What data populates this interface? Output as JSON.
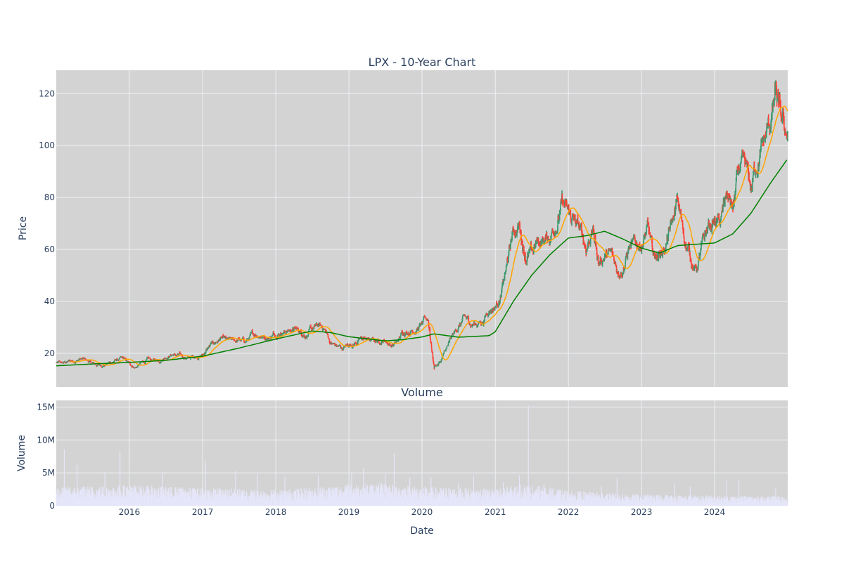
{
  "chart_data": [
    {
      "type": "candlestick",
      "title": "LPX - 10-Year Chart",
      "ylabel": "Price",
      "ylim": [
        7,
        129
      ],
      "yticks": [
        20,
        40,
        60,
        80,
        100,
        120
      ],
      "xlim": [
        "2015-01-01",
        "2024-12-31"
      ],
      "grid": true,
      "colors": {
        "increasing": "#3D9970",
        "decreasing": "#FF4136",
        "ma_short": "#FFA500",
        "ma_long": "#008000",
        "plot_bg": "#d3d3d3",
        "grid": "#eef0f4"
      },
      "price_path": [
        [
          "2015-01-02",
          16.3
        ],
        [
          "2015-02-01",
          15.9
        ],
        [
          "2015-03-01",
          16.6
        ],
        [
          "2015-04-01",
          17.2
        ],
        [
          "2015-05-01",
          17.9
        ],
        [
          "2015-06-01",
          17.1
        ],
        [
          "2015-07-01",
          15.9
        ],
        [
          "2015-08-01",
          15.2
        ],
        [
          "2015-09-01",
          15.8
        ],
        [
          "2015-10-01",
          16.6
        ],
        [
          "2015-11-01",
          17.4
        ],
        [
          "2015-12-01",
          17.6
        ],
        [
          "2016-01-01",
          15.6
        ],
        [
          "2016-02-01",
          14.6
        ],
        [
          "2016-03-01",
          16.2
        ],
        [
          "2016-04-01",
          17.3
        ],
        [
          "2016-05-01",
          17.0
        ],
        [
          "2016-06-01",
          17.6
        ],
        [
          "2016-07-01",
          19.2
        ],
        [
          "2016-08-01",
          19.9
        ],
        [
          "2016-09-01",
          19.1
        ],
        [
          "2016-10-01",
          18.3
        ],
        [
          "2016-11-01",
          18.2
        ],
        [
          "2016-12-01",
          19.0
        ],
        [
          "2017-01-01",
          19.5
        ],
        [
          "2017-02-01",
          22.4
        ],
        [
          "2017-03-01",
          23.8
        ],
        [
          "2017-04-01",
          25.6
        ],
        [
          "2017-05-01",
          24.3
        ],
        [
          "2017-06-01",
          24.1
        ],
        [
          "2017-07-01",
          25.0
        ],
        [
          "2017-08-01",
          24.2
        ],
        [
          "2017-09-01",
          26.2
        ],
        [
          "2017-10-01",
          27.6
        ],
        [
          "2017-11-01",
          27.0
        ],
        [
          "2017-12-01",
          26.5
        ],
        [
          "2018-01-01",
          28.1
        ],
        [
          "2018-02-01",
          29.2
        ],
        [
          "2018-03-01",
          29.0
        ],
        [
          "2018-04-01",
          29.4
        ],
        [
          "2018-05-01",
          28.4
        ],
        [
          "2018-06-01",
          27.8
        ],
        [
          "2018-07-01",
          28.9
        ],
        [
          "2018-08-01",
          30.1
        ],
        [
          "2018-09-01",
          29.4
        ],
        [
          "2018-10-01",
          24.3
        ],
        [
          "2018-11-01",
          22.6
        ],
        [
          "2018-12-01",
          21.8
        ],
        [
          "2019-01-01",
          23.3
        ],
        [
          "2019-02-01",
          24.3
        ],
        [
          "2019-03-01",
          25.3
        ],
        [
          "2019-04-01",
          25.5
        ],
        [
          "2019-05-01",
          24.7
        ],
        [
          "2019-06-01",
          24.8
        ],
        [
          "2019-07-01",
          25.4
        ],
        [
          "2019-08-01",
          23.3
        ],
        [
          "2019-09-01",
          24.3
        ],
        [
          "2019-10-01",
          28.5
        ],
        [
          "2019-11-01",
          29.3
        ],
        [
          "2019-12-01",
          30.0
        ],
        [
          "2020-01-01",
          31.0
        ],
        [
          "2020-02-01",
          32.8
        ],
        [
          "2020-03-01",
          15.0
        ],
        [
          "2020-04-01",
          16.8
        ],
        [
          "2020-05-01",
          21.4
        ],
        [
          "2020-06-01",
          25.8
        ],
        [
          "2020-07-01",
          30.1
        ],
        [
          "2020-08-01",
          33.1
        ],
        [
          "2020-09-01",
          31.3
        ],
        [
          "2020-10-01",
          31.6
        ],
        [
          "2020-11-01",
          32.8
        ],
        [
          "2020-12-01",
          37.5
        ],
        [
          "2021-01-01",
          38.6
        ],
        [
          "2021-02-01",
          43.4
        ],
        [
          "2021-03-01",
          53.5
        ],
        [
          "2021-04-01",
          66.5
        ],
        [
          "2021-05-01",
          69.2
        ],
        [
          "2021-06-01",
          58.8
        ],
        [
          "2021-07-01",
          57.9
        ],
        [
          "2021-08-01",
          62.5
        ],
        [
          "2021-09-01",
          63.6
        ],
        [
          "2021-10-01",
          65.2
        ],
        [
          "2021-11-01",
          72.0
        ],
        [
          "2021-12-01",
          77.5
        ],
        [
          "2022-01-01",
          72.5
        ],
        [
          "2022-02-01",
          70.2
        ],
        [
          "2022-03-01",
          66.1
        ],
        [
          "2022-04-01",
          60.5
        ],
        [
          "2022-05-01",
          68.5
        ],
        [
          "2022-06-01",
          55.1
        ],
        [
          "2022-07-01",
          58.3
        ],
        [
          "2022-08-01",
          57.4
        ],
        [
          "2022-09-01",
          52.5
        ],
        [
          "2022-10-01",
          54.5
        ],
        [
          "2022-11-01",
          61.5
        ],
        [
          "2022-12-01",
          60.2
        ],
        [
          "2023-01-01",
          62.8
        ],
        [
          "2023-02-01",
          67.5
        ],
        [
          "2023-03-01",
          56.3
        ],
        [
          "2023-04-01",
          58.5
        ],
        [
          "2023-05-01",
          61.6
        ],
        [
          "2023-06-01",
          68.5
        ],
        [
          "2023-07-01",
          77.3
        ],
        [
          "2023-08-01",
          64.8
        ],
        [
          "2023-09-01",
          58.0
        ],
        [
          "2023-10-01",
          52.1
        ],
        [
          "2023-11-01",
          60.6
        ],
        [
          "2023-12-01",
          67.9
        ],
        [
          "2024-01-01",
          70.5
        ],
        [
          "2024-02-01",
          69.4
        ],
        [
          "2024-03-01",
          80.8
        ],
        [
          "2024-04-01",
          74.6
        ],
        [
          "2024-05-01",
          89.2
        ],
        [
          "2024-06-01",
          88.6
        ],
        [
          "2024-07-01",
          81.7
        ],
        [
          "2024-08-01",
          95.0
        ],
        [
          "2024-09-01",
          100.2
        ],
        [
          "2024-10-01",
          106.4
        ],
        [
          "2024-11-01",
          117.9
        ],
        [
          "2024-12-01",
          106.0
        ],
        [
          "2024-12-31",
          104.0
        ]
      ],
      "ma_long": [
        [
          "2015-01-02",
          15.2
        ],
        [
          "2015-07-01",
          15.9
        ],
        [
          "2016-01-01",
          16.5
        ],
        [
          "2016-07-01",
          17.3
        ],
        [
          "2017-01-01",
          18.9
        ],
        [
          "2017-07-01",
          22.0
        ],
        [
          "2018-01-01",
          25.5
        ],
        [
          "2018-07-01",
          28.6
        ],
        [
          "2018-10-01",
          28.0
        ],
        [
          "2019-01-01",
          26.4
        ],
        [
          "2019-07-01",
          24.8
        ],
        [
          "2019-10-01",
          25.3
        ],
        [
          "2020-01-01",
          26.3
        ],
        [
          "2020-03-01",
          27.5
        ],
        [
          "2020-07-01",
          26.2
        ],
        [
          "2020-12-01",
          26.8
        ],
        [
          "2021-01-01",
          28.3
        ],
        [
          "2021-04-01",
          40.0
        ],
        [
          "2021-07-01",
          50.0
        ],
        [
          "2021-10-01",
          58.0
        ],
        [
          "2022-01-01",
          64.4
        ],
        [
          "2022-04-01",
          65.3
        ],
        [
          "2022-07-01",
          67.0
        ],
        [
          "2022-10-01",
          64.0
        ],
        [
          "2023-01-01",
          60.5
        ],
        [
          "2023-04-01",
          58.6
        ],
        [
          "2023-07-01",
          61.5
        ],
        [
          "2023-10-01",
          62.0
        ],
        [
          "2024-01-01",
          62.5
        ],
        [
          "2024-04-01",
          66.0
        ],
        [
          "2024-07-01",
          74.0
        ],
        [
          "2024-10-01",
          85.0
        ],
        [
          "2024-12-31",
          95.0
        ]
      ]
    },
    {
      "type": "bar",
      "title": "Volume",
      "xlabel": "Date",
      "ylabel": "Volume",
      "ylim": [
        0,
        16000000
      ],
      "yticks": [
        0,
        5000000,
        10000000,
        15000000
      ],
      "ytick_labels": [
        "0",
        "5M",
        "10M",
        "15M"
      ],
      "xticks": [
        "2016",
        "2017",
        "2018",
        "2019",
        "2020",
        "2021",
        "2022",
        "2023",
        "2024"
      ],
      "color": "#e6e6fa",
      "baseline_path": [
        [
          "2015-01-01",
          2.0
        ],
        [
          "2016-01-01",
          2.2
        ],
        [
          "2017-01-01",
          1.9
        ],
        [
          "2018-01-01",
          1.7
        ],
        [
          "2019-01-01",
          2.3
        ],
        [
          "2019-07-01",
          2.4
        ],
        [
          "2020-01-01",
          2.0
        ],
        [
          "2020-07-01",
          1.9
        ],
        [
          "2021-01-01",
          1.8
        ],
        [
          "2021-06-01",
          2.3
        ],
        [
          "2022-01-01",
          1.6
        ],
        [
          "2023-01-01",
          1.2
        ],
        [
          "2024-01-01",
          1.1
        ],
        [
          "2024-12-31",
          1.0
        ]
      ],
      "spikes": [
        [
          "2015-02-10",
          8.6
        ],
        [
          "2015-04-15",
          6.2
        ],
        [
          "2015-09-01",
          5.2
        ],
        [
          "2015-11-15",
          8.3
        ],
        [
          "2016-06-15",
          5.0
        ],
        [
          "2017-01-15",
          6.8
        ],
        [
          "2017-06-15",
          5.3
        ],
        [
          "2017-10-01",
          4.8
        ],
        [
          "2018-02-15",
          4.4
        ],
        [
          "2018-08-01",
          4.6
        ],
        [
          "2019-01-15",
          4.9
        ],
        [
          "2019-03-15",
          5.7
        ],
        [
          "2019-07-01",
          4.8
        ],
        [
          "2019-08-15",
          8.0
        ],
        [
          "2019-11-01",
          4.3
        ],
        [
          "2020-02-15",
          4.3
        ],
        [
          "2020-07-01",
          3.4
        ],
        [
          "2020-09-15",
          4.5
        ],
        [
          "2021-02-10",
          3.6
        ],
        [
          "2021-05-01",
          4.6
        ],
        [
          "2021-06-15",
          15.3
        ],
        [
          "2021-09-01",
          3.3
        ],
        [
          "2022-06-15",
          3.0
        ],
        [
          "2022-09-01",
          4.2
        ],
        [
          "2023-06-15",
          3.4
        ],
        [
          "2023-09-01",
          2.9
        ],
        [
          "2024-03-01",
          3.8
        ],
        [
          "2024-05-01",
          3.9
        ],
        [
          "2024-11-01",
          2.6
        ]
      ]
    }
  ]
}
